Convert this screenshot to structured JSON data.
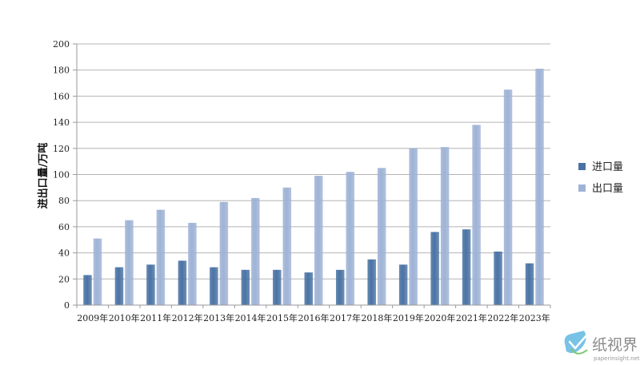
{
  "chart_data": {
    "type": "bar",
    "title": "",
    "xlabel": "",
    "ylabel": "进出口量/万吨",
    "ylim": [
      0,
      200
    ],
    "yticks": [
      0,
      20,
      40,
      60,
      80,
      100,
      120,
      140,
      160,
      180,
      200
    ],
    "grid": true,
    "legend_position": "right",
    "categories": [
      "2009年",
      "2010年",
      "2011年",
      "2012年",
      "2013年",
      "2014年",
      "2015年",
      "2016年",
      "2017年",
      "2018年",
      "2019年",
      "2020年",
      "2021年",
      "2022年",
      "2023年"
    ],
    "series": [
      {
        "name": "进口量",
        "color": "#4a73a4",
        "values": [
          23,
          29,
          31,
          34,
          29,
          27,
          27,
          25,
          27,
          35,
          31,
          56,
          58,
          41,
          32
        ]
      },
      {
        "name": "出口量",
        "color": "#9fb3d6",
        "values": [
          51,
          65,
          73,
          63,
          79,
          82,
          90,
          99,
          102,
          105,
          120,
          121,
          138,
          165,
          181
        ]
      }
    ]
  },
  "watermark": {
    "brand": "纸视界",
    "url": "paperinsight.net"
  }
}
